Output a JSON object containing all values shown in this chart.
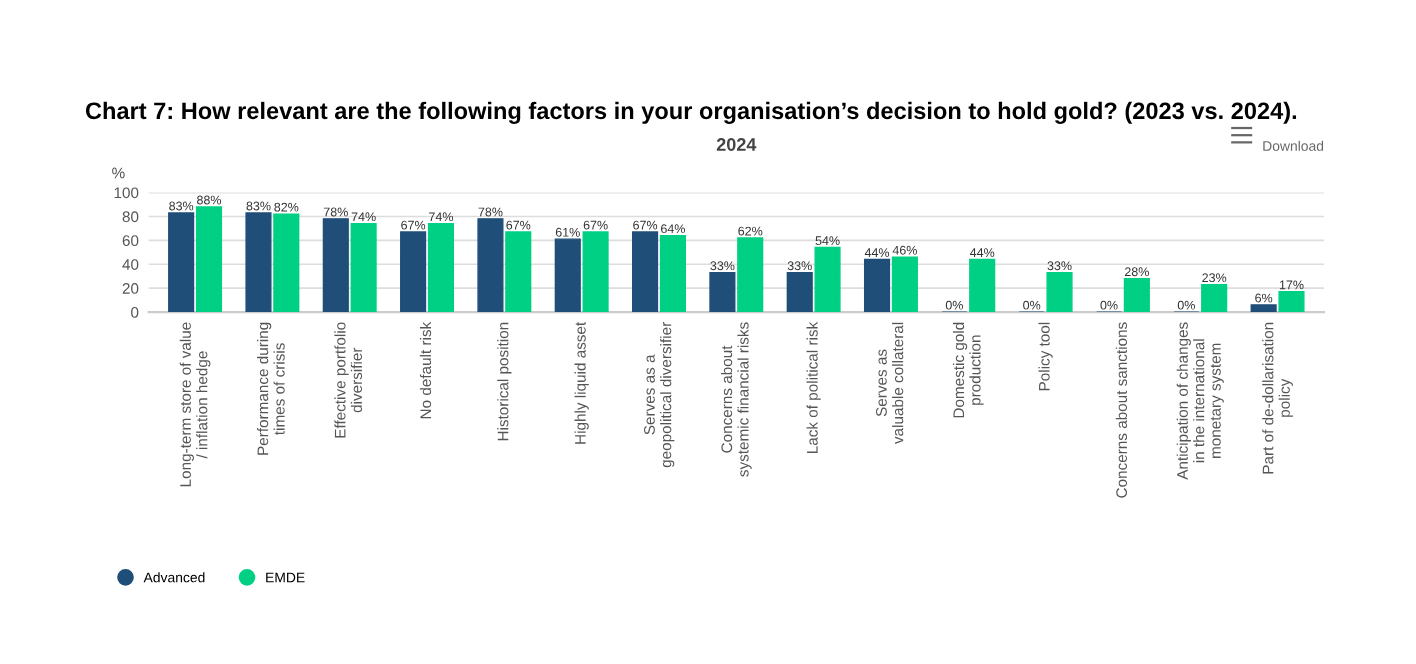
{
  "chart_data": {
    "type": "bar",
    "title": "Chart 7: How relevant are the following factors in your organisation’s decision to hold gold? (2023 vs. 2024).",
    "subtitle": "2024",
    "ylabel": "%",
    "categories": [
      "Long-term store of value\n/ inflation hedge",
      "Performance during\ntimes of crisis",
      "Effective portfolio\ndiversifier",
      "No default risk",
      "Historical position",
      "Highly liquid asset",
      "Serves as a\ngeopolitical diversifier",
      "Concerns about\nsystemic financial risks",
      "Lack of political risk",
      "Serves as\nvaluable collateral",
      "Domestic gold\nproduction",
      "Policy tool",
      "Concerns about sanctions",
      "Anticipation of changes\nin the international\nmonetary system",
      "Part of de-dollarisation\npolicy"
    ],
    "series": [
      {
        "name": "Advanced",
        "color": "#1f4e79",
        "values": [
          83,
          83,
          78,
          67,
          78,
          61,
          67,
          33,
          33,
          44,
          0,
          0,
          0,
          0,
          6
        ],
        "value_labels": [
          "83%",
          "83%",
          "78%",
          "67%",
          "78%",
          "61%",
          "67%",
          "33%",
          "33%",
          "44%",
          "0%",
          "0%",
          "0%",
          "0%",
          "6%"
        ]
      },
      {
        "name": "EMDE",
        "color": "#00d084",
        "values": [
          88,
          82,
          74,
          74,
          67,
          67,
          64,
          62,
          54,
          46,
          44,
          33,
          28,
          23,
          17
        ],
        "value_labels": [
          "88%",
          "82%",
          "74%",
          "74%",
          "67%",
          "67%",
          "64%",
          "62%",
          "54%",
          "46%",
          "44%",
          "33%",
          "28%",
          "23%",
          "17%"
        ]
      }
    ],
    "ylim": [
      0,
      100
    ],
    "yticks": [
      0,
      20,
      40,
      60,
      80,
      100
    ],
    "grid": "y",
    "legend": "bottom left",
    "annotations": [
      "Download"
    ]
  }
}
